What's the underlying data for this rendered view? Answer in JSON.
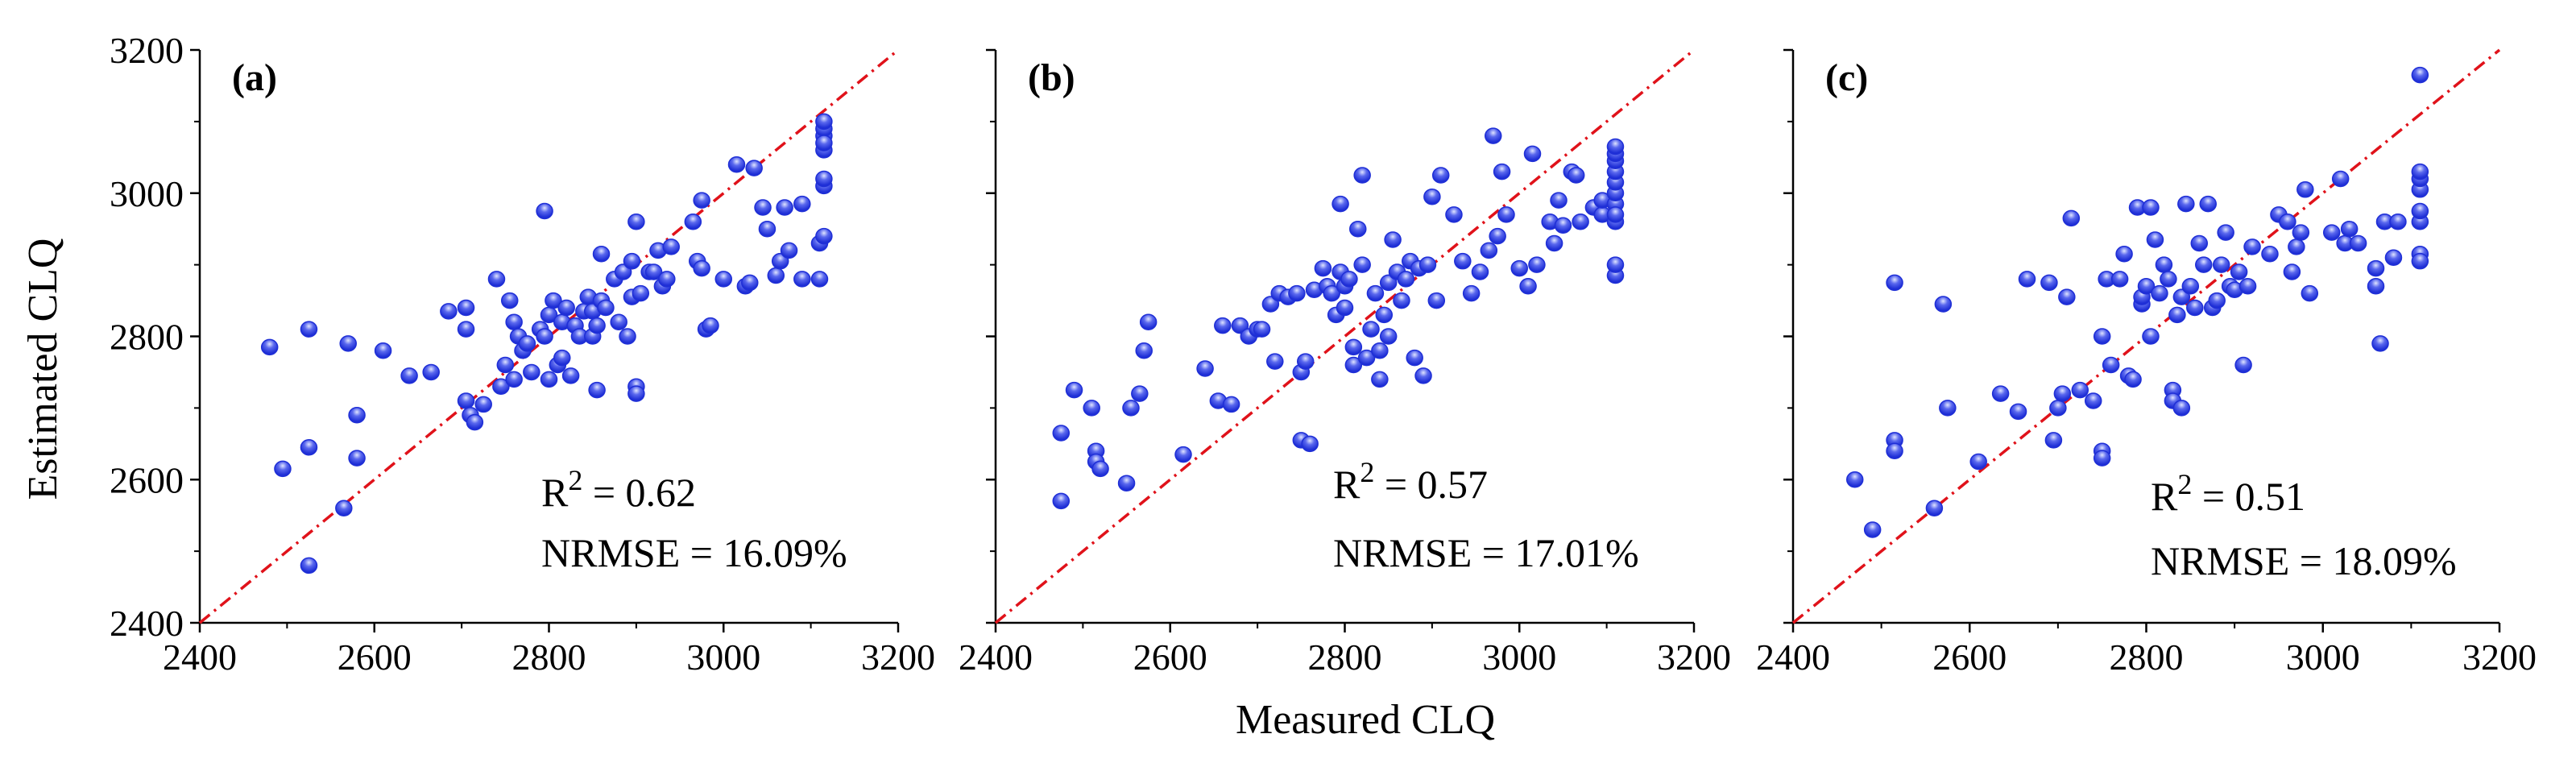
{
  "figure": {
    "xlabel": "Measured CLQ",
    "ylabel": "Estimated CLQ"
  },
  "colors": {
    "marker": "#1f2fd6",
    "marker_highlight": "#dfe4ff",
    "reference_line": "#e0121a",
    "axis": "#000000"
  },
  "chart_data": [
    {
      "type": "scatter",
      "panel_label": "(a)",
      "xlim": [
        2400,
        3200
      ],
      "ylim": [
        2400,
        3200
      ],
      "xticks": [
        "2400",
        "2600",
        "2800",
        "3000",
        "3200"
      ],
      "yticks": [
        "2400",
        "2600",
        "2800",
        "3000",
        "3200"
      ],
      "reference_line": "1:1 dash-dot",
      "stats": {
        "r2_label": "R",
        "r2_sup": "2",
        "r2_value": " = 0.62",
        "nrmse": "NRMSE = 16.09%"
      },
      "points": [
        [
          2480,
          2785
        ],
        [
          2495,
          2615
        ],
        [
          2525,
          2810
        ],
        [
          2525,
          2645
        ],
        [
          2525,
          2480
        ],
        [
          2565,
          2560
        ],
        [
          2570,
          2790
        ],
        [
          2580,
          2630
        ],
        [
          2580,
          2690
        ],
        [
          2610,
          2780
        ],
        [
          2640,
          2745
        ],
        [
          2665,
          2750
        ],
        [
          2685,
          2835
        ],
        [
          2705,
          2840
        ],
        [
          2705,
          2810
        ],
        [
          2705,
          2710
        ],
        [
          2710,
          2690
        ],
        [
          2715,
          2680
        ],
        [
          2725,
          2705
        ],
        [
          2740,
          2880
        ],
        [
          2745,
          2730
        ],
        [
          2750,
          2760
        ],
        [
          2755,
          2850
        ],
        [
          2760,
          2820
        ],
        [
          2760,
          2740
        ],
        [
          2765,
          2800
        ],
        [
          2770,
          2780
        ],
        [
          2775,
          2790
        ],
        [
          2780,
          2750
        ],
        [
          2790,
          2810
        ],
        [
          2795,
          2800
        ],
        [
          2795,
          2975
        ],
        [
          2800,
          2830
        ],
        [
          2800,
          2740
        ],
        [
          2805,
          2850
        ],
        [
          2810,
          2760
        ],
        [
          2815,
          2770
        ],
        [
          2815,
          2820
        ],
        [
          2820,
          2840
        ],
        [
          2825,
          2745
        ],
        [
          2830,
          2815
        ],
        [
          2835,
          2800
        ],
        [
          2840,
          2835
        ],
        [
          2845,
          2855
        ],
        [
          2850,
          2800
        ],
        [
          2850,
          2835
        ],
        [
          2855,
          2725
        ],
        [
          2855,
          2815
        ],
        [
          2860,
          2850
        ],
        [
          2860,
          2915
        ],
        [
          2865,
          2840
        ],
        [
          2875,
          2880
        ],
        [
          2880,
          2820
        ],
        [
          2885,
          2890
        ],
        [
          2890,
          2800
        ],
        [
          2895,
          2855
        ],
        [
          2895,
          2905
        ],
        [
          2900,
          2730
        ],
        [
          2900,
          2720
        ],
        [
          2900,
          2960
        ],
        [
          2905,
          2860
        ],
        [
          2915,
          2890
        ],
        [
          2920,
          2890
        ],
        [
          2925,
          2920
        ],
        [
          2930,
          2870
        ],
        [
          2935,
          2880
        ],
        [
          2940,
          2925
        ],
        [
          2965,
          2960
        ],
        [
          2970,
          2905
        ],
        [
          2975,
          2990
        ],
        [
          2975,
          2895
        ],
        [
          2980,
          2810
        ],
        [
          2985,
          2815
        ],
        [
          3000,
          2880
        ],
        [
          3015,
          3040
        ],
        [
          3025,
          2870
        ],
        [
          3030,
          2875
        ],
        [
          3035,
          3035
        ],
        [
          3045,
          2980
        ],
        [
          3050,
          2950
        ],
        [
          3060,
          2885
        ],
        [
          3065,
          2905
        ],
        [
          3070,
          2980
        ],
        [
          3075,
          2920
        ],
        [
          3090,
          2880
        ],
        [
          3090,
          2985
        ],
        [
          3110,
          2880
        ],
        [
          3110,
          2930
        ],
        [
          3115,
          2940
        ],
        [
          3115,
          3010
        ],
        [
          3115,
          3060
        ],
        [
          3115,
          3080
        ],
        [
          3115,
          3090
        ],
        [
          3115,
          3100
        ],
        [
          3115,
          3070
        ],
        [
          3115,
          3020
        ]
      ]
    },
    {
      "type": "scatter",
      "panel_label": "(b)",
      "xlim": [
        2400,
        3200
      ],
      "ylim": [
        2400,
        3200
      ],
      "xticks": [
        "2400",
        "2600",
        "2800",
        "3000",
        "3200"
      ],
      "yticks": [
        "2400",
        "2600",
        "2800",
        "3000",
        "3200"
      ],
      "reference_line": "1:1 dash-dot",
      "stats": {
        "r2_label": "R",
        "r2_sup": "2",
        "r2_value": " = 0.57",
        "nrmse": "NRMSE = 17.01%"
      },
      "points": [
        [
          2475,
          2665
        ],
        [
          2475,
          2570
        ],
        [
          2490,
          2725
        ],
        [
          2510,
          2700
        ],
        [
          2515,
          2640
        ],
        [
          2515,
          2625
        ],
        [
          2520,
          2615
        ],
        [
          2550,
          2595
        ],
        [
          2555,
          2700
        ],
        [
          2565,
          2720
        ],
        [
          2570,
          2780
        ],
        [
          2575,
          2820
        ],
        [
          2615,
          2635
        ],
        [
          2640,
          2755
        ],
        [
          2655,
          2710
        ],
        [
          2660,
          2815
        ],
        [
          2670,
          2705
        ],
        [
          2680,
          2815
        ],
        [
          2690,
          2800
        ],
        [
          2700,
          2810
        ],
        [
          2705,
          2810
        ],
        [
          2715,
          2845
        ],
        [
          2720,
          2765
        ],
        [
          2725,
          2860
        ],
        [
          2735,
          2855
        ],
        [
          2745,
          2860
        ],
        [
          2750,
          2750
        ],
        [
          2750,
          2655
        ],
        [
          2755,
          2765
        ],
        [
          2760,
          2650
        ],
        [
          2765,
          2865
        ],
        [
          2775,
          2895
        ],
        [
          2780,
          2870
        ],
        [
          2785,
          2860
        ],
        [
          2790,
          2830
        ],
        [
          2795,
          2985
        ],
        [
          2795,
          2890
        ],
        [
          2800,
          2870
        ],
        [
          2800,
          2840
        ],
        [
          2805,
          2880
        ],
        [
          2810,
          2785
        ],
        [
          2810,
          2760
        ],
        [
          2815,
          2950
        ],
        [
          2820,
          2900
        ],
        [
          2820,
          3025
        ],
        [
          2825,
          2770
        ],
        [
          2830,
          2810
        ],
        [
          2835,
          2860
        ],
        [
          2840,
          2780
        ],
        [
          2840,
          2740
        ],
        [
          2845,
          2830
        ],
        [
          2850,
          2875
        ],
        [
          2850,
          2800
        ],
        [
          2855,
          2935
        ],
        [
          2860,
          2890
        ],
        [
          2865,
          2850
        ],
        [
          2870,
          2880
        ],
        [
          2875,
          2905
        ],
        [
          2880,
          2770
        ],
        [
          2885,
          2895
        ],
        [
          2890,
          2745
        ],
        [
          2895,
          2900
        ],
        [
          2900,
          2995
        ],
        [
          2905,
          2850
        ],
        [
          2910,
          3025
        ],
        [
          2925,
          2970
        ],
        [
          2935,
          2905
        ],
        [
          2945,
          2860
        ],
        [
          2955,
          2890
        ],
        [
          2965,
          2920
        ],
        [
          2970,
          3080
        ],
        [
          2975,
          2940
        ],
        [
          2980,
          3030
        ],
        [
          2985,
          2970
        ],
        [
          3000,
          2895
        ],
        [
          3010,
          2870
        ],
        [
          3015,
          3055
        ],
        [
          3020,
          2900
        ],
        [
          3035,
          2960
        ],
        [
          3040,
          2930
        ],
        [
          3045,
          2990
        ],
        [
          3050,
          2955
        ],
        [
          3060,
          3030
        ],
        [
          3065,
          3025
        ],
        [
          3070,
          2960
        ],
        [
          3085,
          2980
        ],
        [
          3095,
          2970
        ],
        [
          3095,
          2990
        ],
        [
          3110,
          2885
        ],
        [
          3110,
          2900
        ],
        [
          3110,
          2960
        ],
        [
          3110,
          2985
        ],
        [
          3110,
          3000
        ],
        [
          3110,
          3015
        ],
        [
          3110,
          3030
        ],
        [
          3110,
          3045
        ],
        [
          3110,
          3055
        ],
        [
          3110,
          3065
        ],
        [
          3110,
          2970
        ]
      ]
    },
    {
      "type": "scatter",
      "panel_label": "(c)",
      "xlim": [
        2400,
        3200
      ],
      "ylim": [
        2400,
        3200
      ],
      "xticks": [
        "2400",
        "2600",
        "2800",
        "3000",
        "3200"
      ],
      "yticks": [
        "2400",
        "2600",
        "2800",
        "3000",
        "3200"
      ],
      "reference_line": "1:1 dash-dot",
      "stats": {
        "r2_label": "R",
        "r2_sup": "2",
        "r2_value": " = 0.51",
        "nrmse": "NRMSE = 18.09%"
      },
      "points": [
        [
          2470,
          2600
        ],
        [
          2490,
          2530
        ],
        [
          2515,
          2875
        ],
        [
          2515,
          2655
        ],
        [
          2515,
          2640
        ],
        [
          2560,
          2560
        ],
        [
          2570,
          2845
        ],
        [
          2575,
          2700
        ],
        [
          2610,
          2625
        ],
        [
          2635,
          2720
        ],
        [
          2655,
          2695
        ],
        [
          2665,
          2880
        ],
        [
          2690,
          2875
        ],
        [
          2695,
          2655
        ],
        [
          2700,
          2700
        ],
        [
          2705,
          2720
        ],
        [
          2710,
          2855
        ],
        [
          2715,
          2965
        ],
        [
          2725,
          2725
        ],
        [
          2740,
          2710
        ],
        [
          2750,
          2800
        ],
        [
          2750,
          2640
        ],
        [
          2750,
          2630
        ],
        [
          2755,
          2880
        ],
        [
          2760,
          2760
        ],
        [
          2770,
          2880
        ],
        [
          2775,
          2915
        ],
        [
          2780,
          2745
        ],
        [
          2785,
          2740
        ],
        [
          2790,
          2980
        ],
        [
          2795,
          2845
        ],
        [
          2795,
          2855
        ],
        [
          2800,
          2870
        ],
        [
          2805,
          2800
        ],
        [
          2805,
          2980
        ],
        [
          2810,
          2935
        ],
        [
          2815,
          2860
        ],
        [
          2820,
          2900
        ],
        [
          2825,
          2880
        ],
        [
          2830,
          2725
        ],
        [
          2830,
          2710
        ],
        [
          2835,
          2830
        ],
        [
          2840,
          2700
        ],
        [
          2840,
          2855
        ],
        [
          2845,
          2985
        ],
        [
          2850,
          2870
        ],
        [
          2855,
          2840
        ],
        [
          2860,
          2930
        ],
        [
          2865,
          2900
        ],
        [
          2870,
          2985
        ],
        [
          2875,
          2840
        ],
        [
          2880,
          2850
        ],
        [
          2885,
          2900
        ],
        [
          2890,
          2945
        ],
        [
          2895,
          2870
        ],
        [
          2900,
          2865
        ],
        [
          2905,
          2890
        ],
        [
          2910,
          2760
        ],
        [
          2915,
          2870
        ],
        [
          2920,
          2925
        ],
        [
          2940,
          2915
        ],
        [
          2950,
          2970
        ],
        [
          2960,
          2960
        ],
        [
          2965,
          2890
        ],
        [
          2970,
          2925
        ],
        [
          2975,
          2945
        ],
        [
          2980,
          3005
        ],
        [
          2985,
          2860
        ],
        [
          3010,
          2945
        ],
        [
          3020,
          3020
        ],
        [
          3025,
          2930
        ],
        [
          3030,
          2950
        ],
        [
          3040,
          2930
        ],
        [
          3060,
          2895
        ],
        [
          3060,
          2870
        ],
        [
          3065,
          2790
        ],
        [
          3070,
          2960
        ],
        [
          3080,
          2910
        ],
        [
          3085,
          2960
        ],
        [
          3110,
          3165
        ],
        [
          3110,
          2915
        ],
        [
          3110,
          2960
        ],
        [
          3110,
          2975
        ],
        [
          3110,
          3005
        ],
        [
          3110,
          3020
        ],
        [
          3110,
          3030
        ],
        [
          3110,
          2905
        ]
      ]
    }
  ]
}
